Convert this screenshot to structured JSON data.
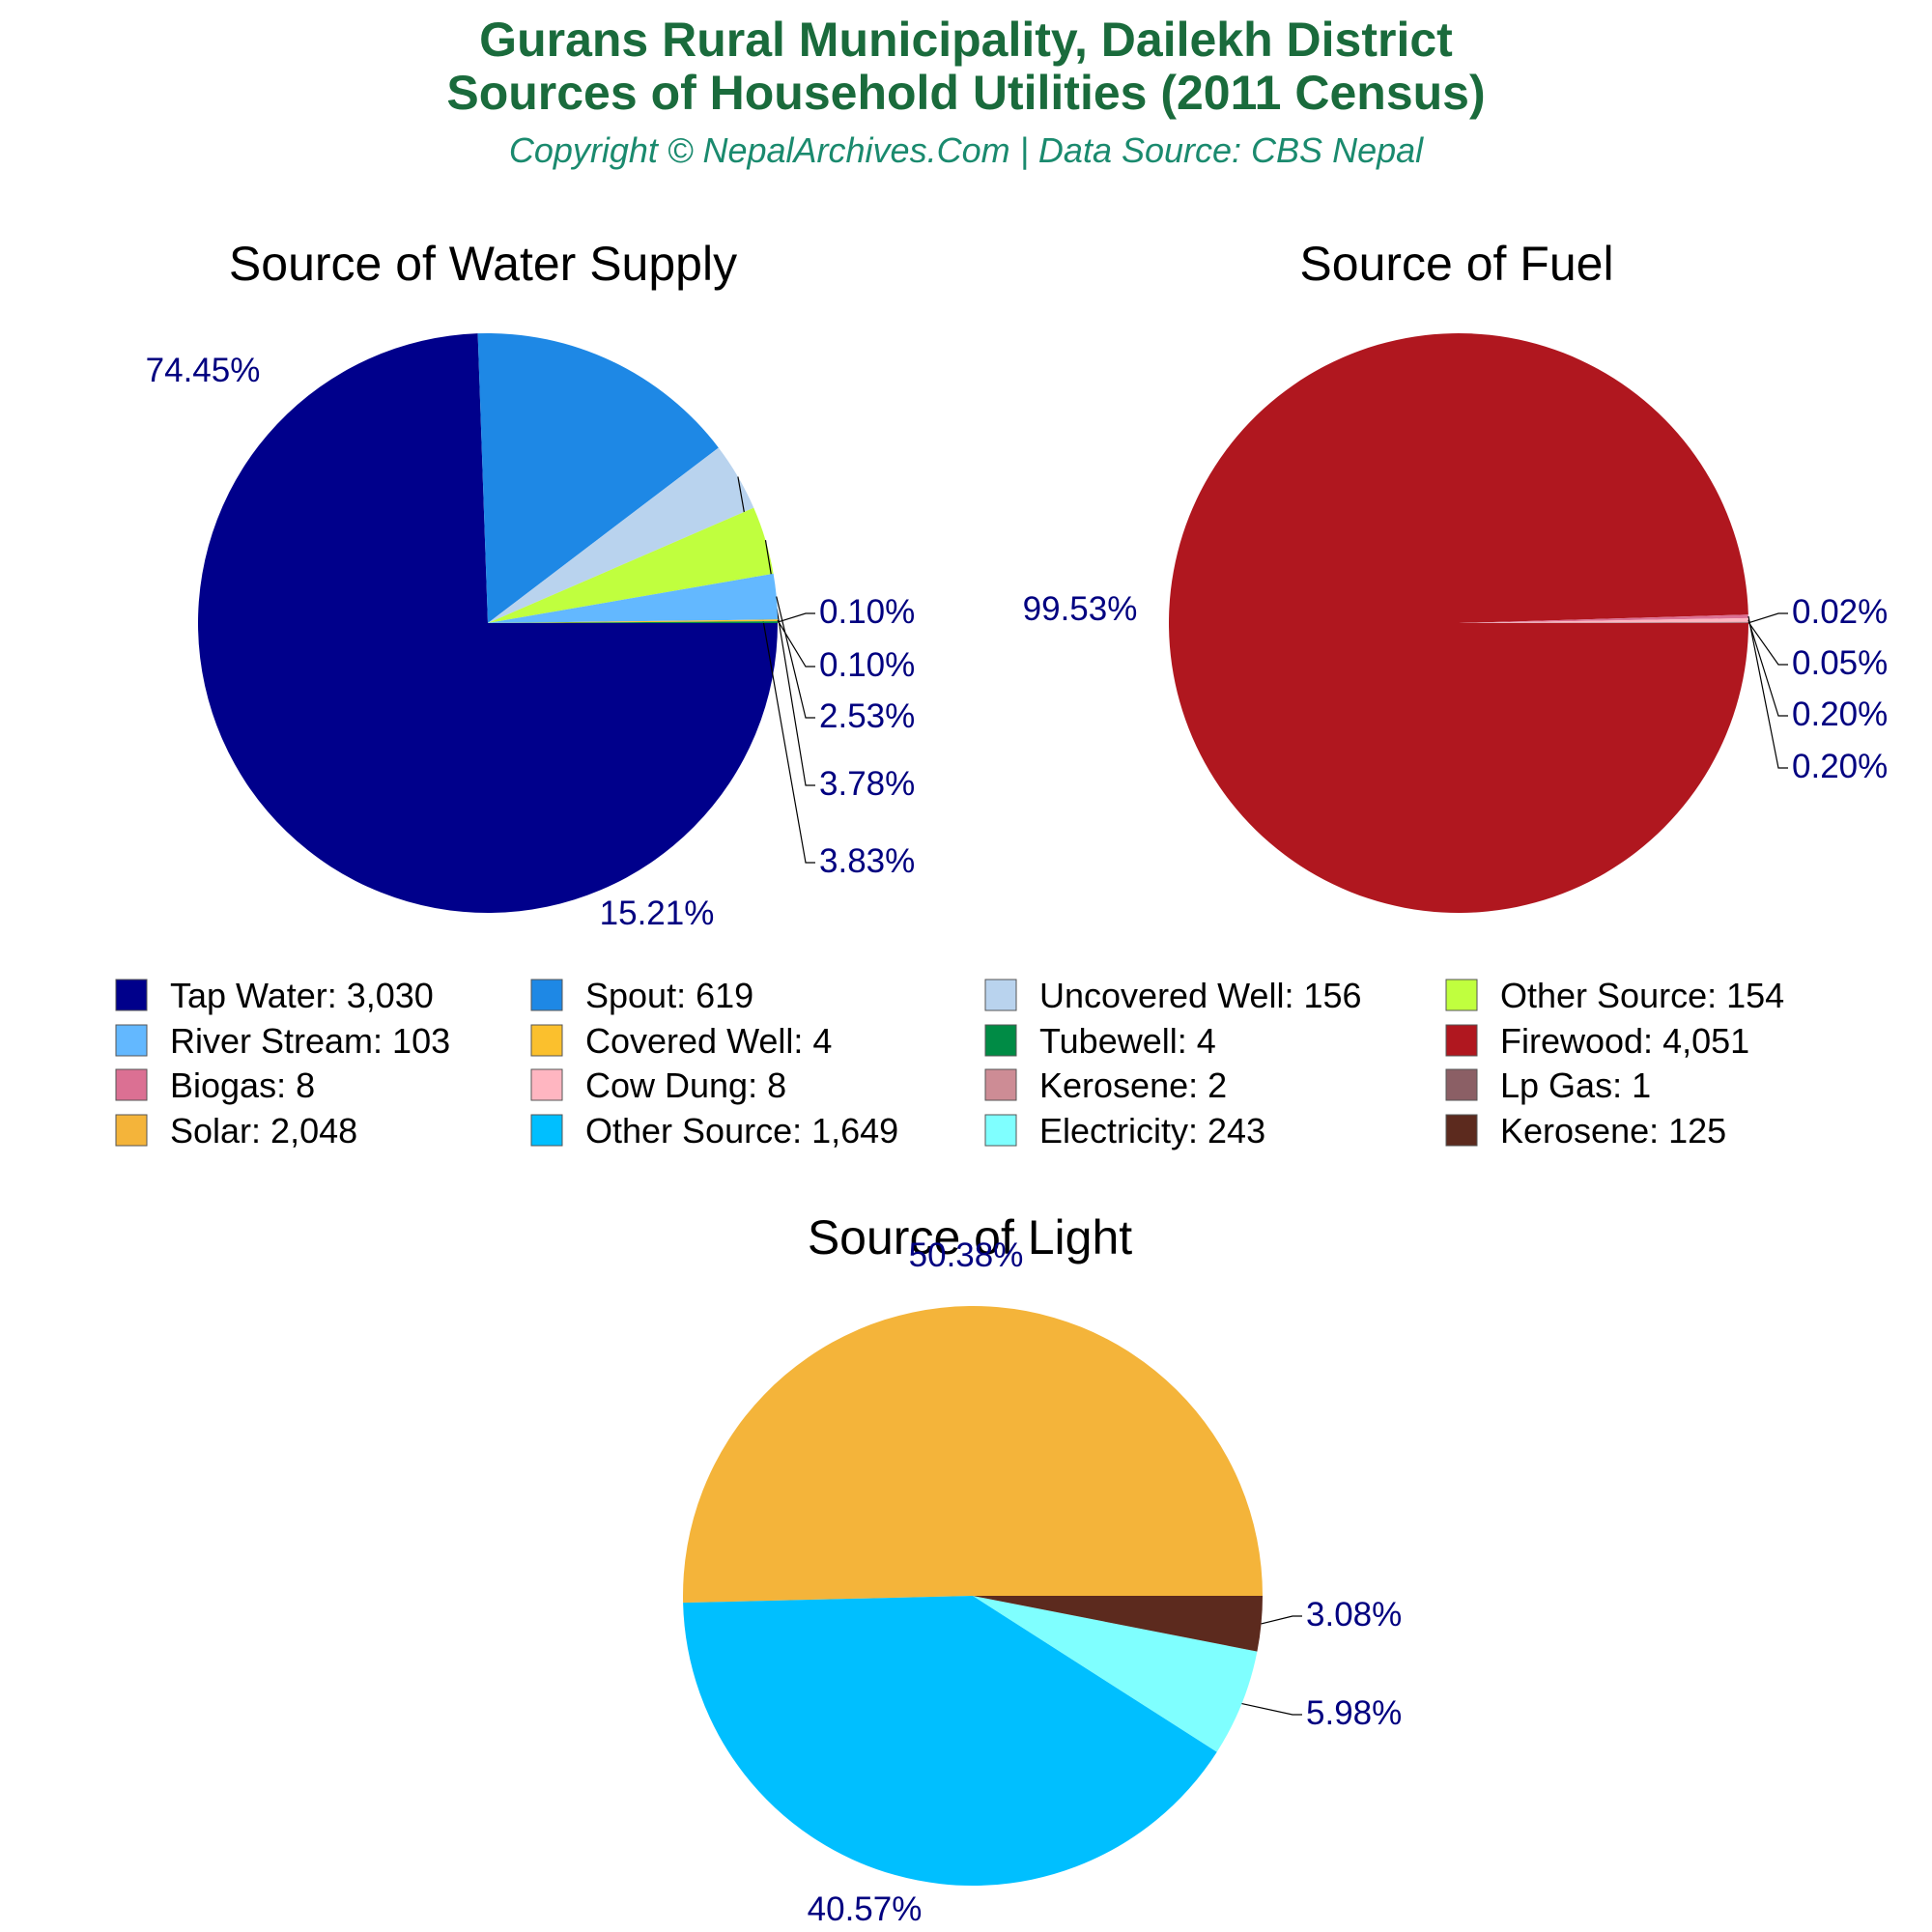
{
  "header": {
    "title_line1": "Gurans Rural Municipality, Dailekh District",
    "title_line2": "Sources of Household Utilities (2011 Census)",
    "subtitle": "Copyright © NepalArchives.Com | Data Source: CBS Nepal"
  },
  "chart_data": [
    {
      "type": "pie",
      "title": "Source of Water Supply",
      "categories": [
        "Tap Water",
        "Spout",
        "Uncovered Well",
        "Other Source",
        "River Stream",
        "Covered Well",
        "Tubewell"
      ],
      "values": [
        3030,
        619,
        156,
        154,
        103,
        4,
        4
      ],
      "percent_labels": [
        "74.45%",
        "15.21%",
        "3.83%",
        "3.78%",
        "2.53%",
        "0.10%",
        "0.10%"
      ],
      "colors": [
        "#00008b",
        "#1e88e5",
        "#b9d3ee",
        "#c0ff3e",
        "#63b8ff",
        "#fbc02d",
        "#008b45"
      ]
    },
    {
      "type": "pie",
      "title": "Source of Fuel",
      "categories": [
        "Firewood",
        "Biogas",
        "Cow Dung",
        "Kerosene",
        "Lp Gas"
      ],
      "values": [
        4051,
        8,
        8,
        2,
        1
      ],
      "percent_labels": [
        "99.53%",
        "0.20%",
        "0.20%",
        "0.05%",
        "0.02%"
      ],
      "colors": [
        "#b0171f",
        "#db7093",
        "#ffb6c1",
        "#cd8c95",
        "#8b5f65"
      ]
    },
    {
      "type": "pie",
      "title": "Source of Light",
      "categories": [
        "Solar",
        "Other Source",
        "Electricity",
        "Kerosene"
      ],
      "values": [
        2048,
        1649,
        243,
        125
      ],
      "percent_labels": [
        "50.38%",
        "40.57%",
        "5.98%",
        "3.08%"
      ],
      "colors": [
        "#f4b43a",
        "#00bfff",
        "#7fffff",
        "#5c2a1e"
      ]
    }
  ],
  "legend": [
    {
      "label": "Tap Water: 3,030",
      "color": "#00008b"
    },
    {
      "label": "Spout: 619",
      "color": "#1e88e5"
    },
    {
      "label": "Uncovered Well: 156",
      "color": "#b9d3ee"
    },
    {
      "label": "Other Source: 154",
      "color": "#c0ff3e"
    },
    {
      "label": "River Stream: 103",
      "color": "#63b8ff"
    },
    {
      "label": "Covered Well: 4",
      "color": "#fbc02d"
    },
    {
      "label": "Tubewell: 4",
      "color": "#008b45"
    },
    {
      "label": "Firewood: 4,051",
      "color": "#b0171f"
    },
    {
      "label": "Biogas: 8",
      "color": "#db7093"
    },
    {
      "label": "Cow Dung: 8",
      "color": "#ffb6c1"
    },
    {
      "label": "Kerosene: 2",
      "color": "#cd8c95"
    },
    {
      "label": "Lp Gas: 1",
      "color": "#8b5f65"
    },
    {
      "label": "Solar: 2,048",
      "color": "#f4b43a"
    },
    {
      "label": "Other Source: 1,649",
      "color": "#00bfff"
    },
    {
      "label": "Electricity: 243",
      "color": "#7fffff"
    },
    {
      "label": "Kerosene: 125",
      "color": "#5c2a1e"
    }
  ]
}
